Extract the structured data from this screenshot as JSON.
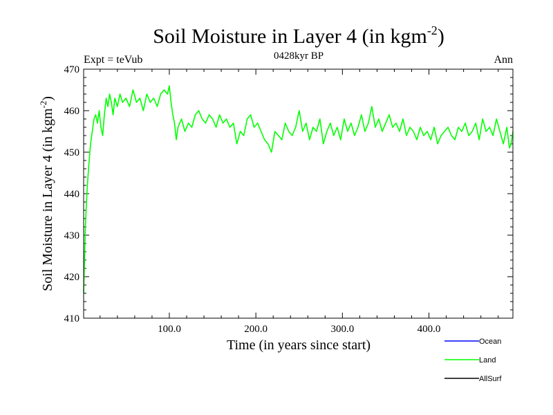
{
  "title_main": "Soil Moisture in Layer 4 (in kgm",
  "title_sup": "-2",
  "title_close": ")",
  "subtitle_left": "Expt = teVub",
  "subtitle_center": "0428kyr BP",
  "subtitle_right": "Ann",
  "ylabel_main": "Soil Moisture in Layer 4 (in kgm",
  "ylabel_sup": "-2",
  "ylabel_close": ")",
  "xlabel": "Time (in years since start)",
  "legend": [
    {
      "label": "Ocean",
      "color": "#0000ff"
    },
    {
      "label": "Land",
      "color": "#00ff00"
    },
    {
      "label": "AllSurf",
      "color": "#000000"
    }
  ],
  "chart_data": {
    "type": "line",
    "title": "Soil Moisture in Layer 4 (in kgm-2)",
    "xlabel": "Time (in years since start)",
    "ylabel": "Soil Moisture in Layer 4 (in kgm-2)",
    "xlim": [
      1,
      497
    ],
    "ylim": [
      410,
      470
    ],
    "x_ticks": [
      100,
      200,
      300,
      400
    ],
    "x_tick_labels": [
      "100.0",
      "200.0",
      "300.0",
      "400.0"
    ],
    "y_ticks": [
      410,
      420,
      430,
      440,
      450,
      460,
      470
    ],
    "y_tick_labels": [
      "410",
      "420",
      "430",
      "440",
      "450",
      "460",
      "470"
    ],
    "grid": false,
    "legend_position": "bottom-right",
    "series": [
      {
        "name": "Land",
        "color": "#00ff00",
        "x": [
          1,
          3,
          5,
          7,
          9,
          11,
          13,
          15,
          17,
          19,
          21,
          23,
          25,
          27,
          29,
          31,
          33,
          35,
          37,
          40,
          43,
          46,
          50,
          54,
          58,
          62,
          66,
          70,
          74,
          78,
          82,
          86,
          90,
          94,
          98,
          100,
          102,
          104,
          106,
          108,
          110,
          114,
          118,
          122,
          126,
          130,
          134,
          138,
          142,
          146,
          150,
          154,
          158,
          162,
          166,
          170,
          174,
          178,
          182,
          186,
          190,
          194,
          198,
          202,
          206,
          210,
          214,
          218,
          222,
          226,
          230,
          234,
          238,
          242,
          246,
          250,
          254,
          258,
          262,
          266,
          270,
          274,
          278,
          282,
          286,
          290,
          294,
          298,
          302,
          306,
          310,
          314,
          318,
          322,
          326,
          330,
          334,
          338,
          342,
          346,
          350,
          354,
          358,
          362,
          366,
          370,
          374,
          378,
          382,
          386,
          390,
          394,
          398,
          402,
          406,
          410,
          414,
          418,
          422,
          426,
          430,
          434,
          438,
          442,
          446,
          450,
          454,
          458,
          462,
          466,
          470,
          474,
          478,
          482,
          486,
          490,
          493,
          495,
          497
        ],
        "y": [
          416,
          432,
          441,
          447,
          452,
          455,
          458,
          459,
          457,
          460,
          456,
          454,
          459,
          463,
          461,
          464,
          462,
          459,
          463,
          461,
          464,
          462,
          463,
          461,
          465,
          462,
          463,
          460,
          464,
          462,
          463,
          461,
          464,
          465,
          464,
          466,
          462,
          459,
          457,
          453,
          456,
          458,
          455,
          457,
          456,
          459,
          460,
          458,
          457,
          459,
          458,
          456,
          459,
          457,
          458,
          456,
          457,
          452,
          455,
          454,
          458,
          459,
          456,
          457,
          455,
          453,
          452,
          450,
          455,
          454,
          453,
          457,
          455,
          454,
          456,
          460,
          455,
          457,
          453,
          456,
          455,
          458,
          452,
          455,
          457,
          454,
          456,
          453,
          458,
          455,
          457,
          454,
          456,
          459,
          455,
          457,
          461,
          456,
          458,
          455,
          457,
          459,
          456,
          457,
          455,
          458,
          454,
          456,
          455,
          453,
          456,
          454,
          455,
          453,
          456,
          452,
          454,
          455,
          456,
          454,
          453,
          456,
          455,
          457,
          454,
          455,
          457,
          453,
          458,
          455,
          456,
          454,
          458,
          455,
          452,
          456,
          451,
          452,
          455
        ]
      }
    ]
  }
}
